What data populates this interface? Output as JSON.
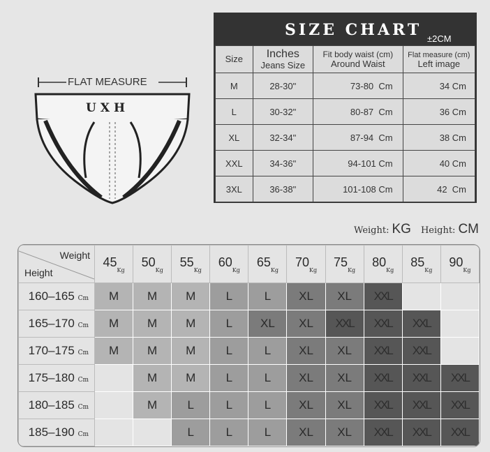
{
  "illustration": {
    "flat_measure_label": "FLAT MEASURE",
    "brand": "UXH"
  },
  "size_chart": {
    "title": "SIZE CHART",
    "tolerance": "±2CM",
    "headers": [
      [
        "Size",
        ""
      ],
      [
        "Inches",
        "Jeans Size"
      ],
      [
        "Fit body waist (cm)",
        "Around Waist"
      ],
      [
        "Flat measure (cm)",
        "Left image"
      ]
    ],
    "rows": [
      [
        "M",
        "28-30\"",
        "73-80  Cm",
        "34 Cm"
      ],
      [
        "L",
        "30-32\"",
        "80-87  Cm",
        "36 Cm"
      ],
      [
        "XL",
        "32-34\"",
        "87-94  Cm",
        "38 Cm"
      ],
      [
        "XXL",
        "34-36\"",
        "94-101 Cm",
        "40 Cm"
      ],
      [
        "3XL",
        "36-38\"",
        "101-108 Cm",
        "42  Cm"
      ]
    ]
  },
  "units": {
    "weight_label": "Weight:",
    "weight_unit": "KG",
    "height_label": "Height:",
    "height_unit": "CM"
  },
  "grid": {
    "corner_weight": "Weight",
    "corner_height": "Height",
    "weight_unit": "Kg",
    "height_unit": "Cm",
    "weights": [
      "45",
      "50",
      "55",
      "60",
      "65",
      "70",
      "75",
      "80",
      "85",
      "90"
    ],
    "rows": [
      {
        "height": "160–165",
        "sizes": [
          "M",
          "M",
          "M",
          "L",
          "L",
          "XL",
          "XL",
          "XXL",
          "",
          ""
        ]
      },
      {
        "height": "165–170",
        "sizes": [
          "M",
          "M",
          "M",
          "L",
          "XL",
          "XL",
          "XXL",
          "XXL",
          "XXL",
          ""
        ]
      },
      {
        "height": "170–175",
        "sizes": [
          "M",
          "M",
          "M",
          "L",
          "L",
          "XL",
          "XL",
          "XXL",
          "XXL",
          ""
        ]
      },
      {
        "height": "175–180",
        "sizes": [
          "",
          "M",
          "M",
          "L",
          "L",
          "XL",
          "XL",
          "XXL",
          "XXL",
          "XXL"
        ]
      },
      {
        "height": "180–185",
        "sizes": [
          "",
          "M",
          "L",
          "L",
          "L",
          "XL",
          "XL",
          "XXL",
          "XXL",
          "XXL"
        ]
      },
      {
        "height": "185–190",
        "sizes": [
          "",
          "",
          "L",
          "L",
          "L",
          "XL",
          "XL",
          "XXL",
          "XXL",
          "XXL"
        ]
      }
    ],
    "colors": {
      "M": "#b4b4b4",
      "L": "#9d9d9d",
      "XL": "#7b7b7b",
      "XXL": "#565656",
      "empty": "#e4e4e4"
    }
  }
}
